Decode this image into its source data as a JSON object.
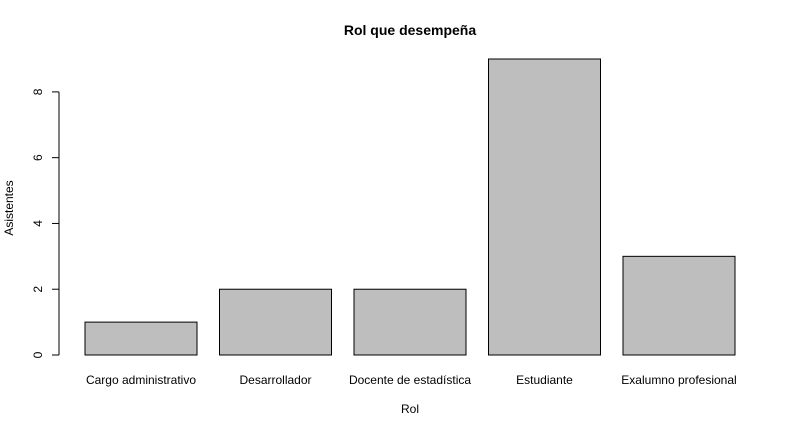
{
  "chart_data": {
    "type": "bar",
    "title": "Rol que desempeña",
    "xlabel": "Rol",
    "ylabel": "Asistentes",
    "categories": [
      "Cargo administrativo",
      "Desarrollador",
      "Docente de estadística",
      "Estudiante",
      "Exalumno profesional"
    ],
    "values": [
      1,
      2,
      2,
      9,
      3
    ],
    "ylim": [
      0,
      9
    ],
    "yticks": [
      0,
      2,
      4,
      6,
      8
    ],
    "bar_color": "#bebebe",
    "grid": false,
    "legend": "none"
  }
}
